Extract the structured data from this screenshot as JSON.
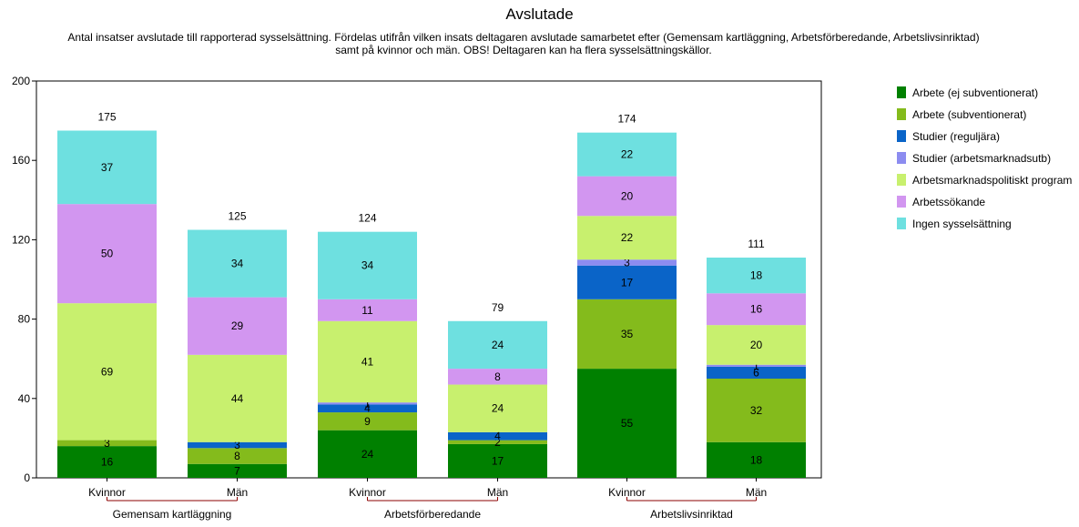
{
  "chart_data": {
    "type": "bar",
    "stacked": true,
    "title": "Avslutade",
    "subtitle": [
      "Antal insatser avslutade till rapporterad sysselsättning. Fördelas utifrån vilken insats deltagaren avslutade samarbetet efter (Gemensam kartläggning, Arbetsförberedande, Arbetslivsinriktad)",
      "samt på kvinnor och män. OBS! Deltagaren kan ha flera sysselsättningskällor."
    ],
    "groups": [
      {
        "label": "Gemensam kartläggning",
        "categories": [
          "Kvinnor",
          "Män"
        ]
      },
      {
        "label": "Arbetsförberedande",
        "categories": [
          "Kvinnor",
          "Män"
        ]
      },
      {
        "label": "Arbetslivsinriktad",
        "categories": [
          "Kvinnor",
          "Män"
        ]
      }
    ],
    "categories": [
      "Kvinnor",
      "Män",
      "Kvinnor",
      "Män",
      "Kvinnor",
      "Män"
    ],
    "totals": [
      175,
      125,
      124,
      79,
      174,
      111
    ],
    "ylim": [
      0,
      200
    ],
    "yticks": [
      0,
      40,
      80,
      120,
      160,
      200
    ],
    "legend_position": "right",
    "series": [
      {
        "name": "Arbete (ej subventionerat)",
        "color": "#008000",
        "values": [
          16,
          7,
          24,
          17,
          55,
          18
        ]
      },
      {
        "name": "Arbete (subventionerat)",
        "color": "#84bb1c",
        "values": [
          3,
          8,
          9,
          2,
          35,
          32
        ]
      },
      {
        "name": "Studier (reguljära)",
        "color": "#0a64c8",
        "values": [
          0,
          3,
          4,
          4,
          17,
          6
        ]
      },
      {
        "name": "Studier (arbetsmarknadsutb)",
        "color": "#8c8cf0",
        "values": [
          0,
          0,
          1,
          0,
          3,
          1
        ]
      },
      {
        "name": "Arbetsmarknadspolitiskt program",
        "color": "#c8f06e",
        "values": [
          69,
          44,
          41,
          24,
          22,
          20
        ]
      },
      {
        "name": "Arbetssökande",
        "color": "#d296f0",
        "values": [
          50,
          29,
          11,
          8,
          20,
          16
        ]
      },
      {
        "name": "Ingen sysselsättning",
        "color": "#6ee0e0",
        "values": [
          37,
          34,
          34,
          24,
          22,
          18
        ]
      }
    ]
  }
}
